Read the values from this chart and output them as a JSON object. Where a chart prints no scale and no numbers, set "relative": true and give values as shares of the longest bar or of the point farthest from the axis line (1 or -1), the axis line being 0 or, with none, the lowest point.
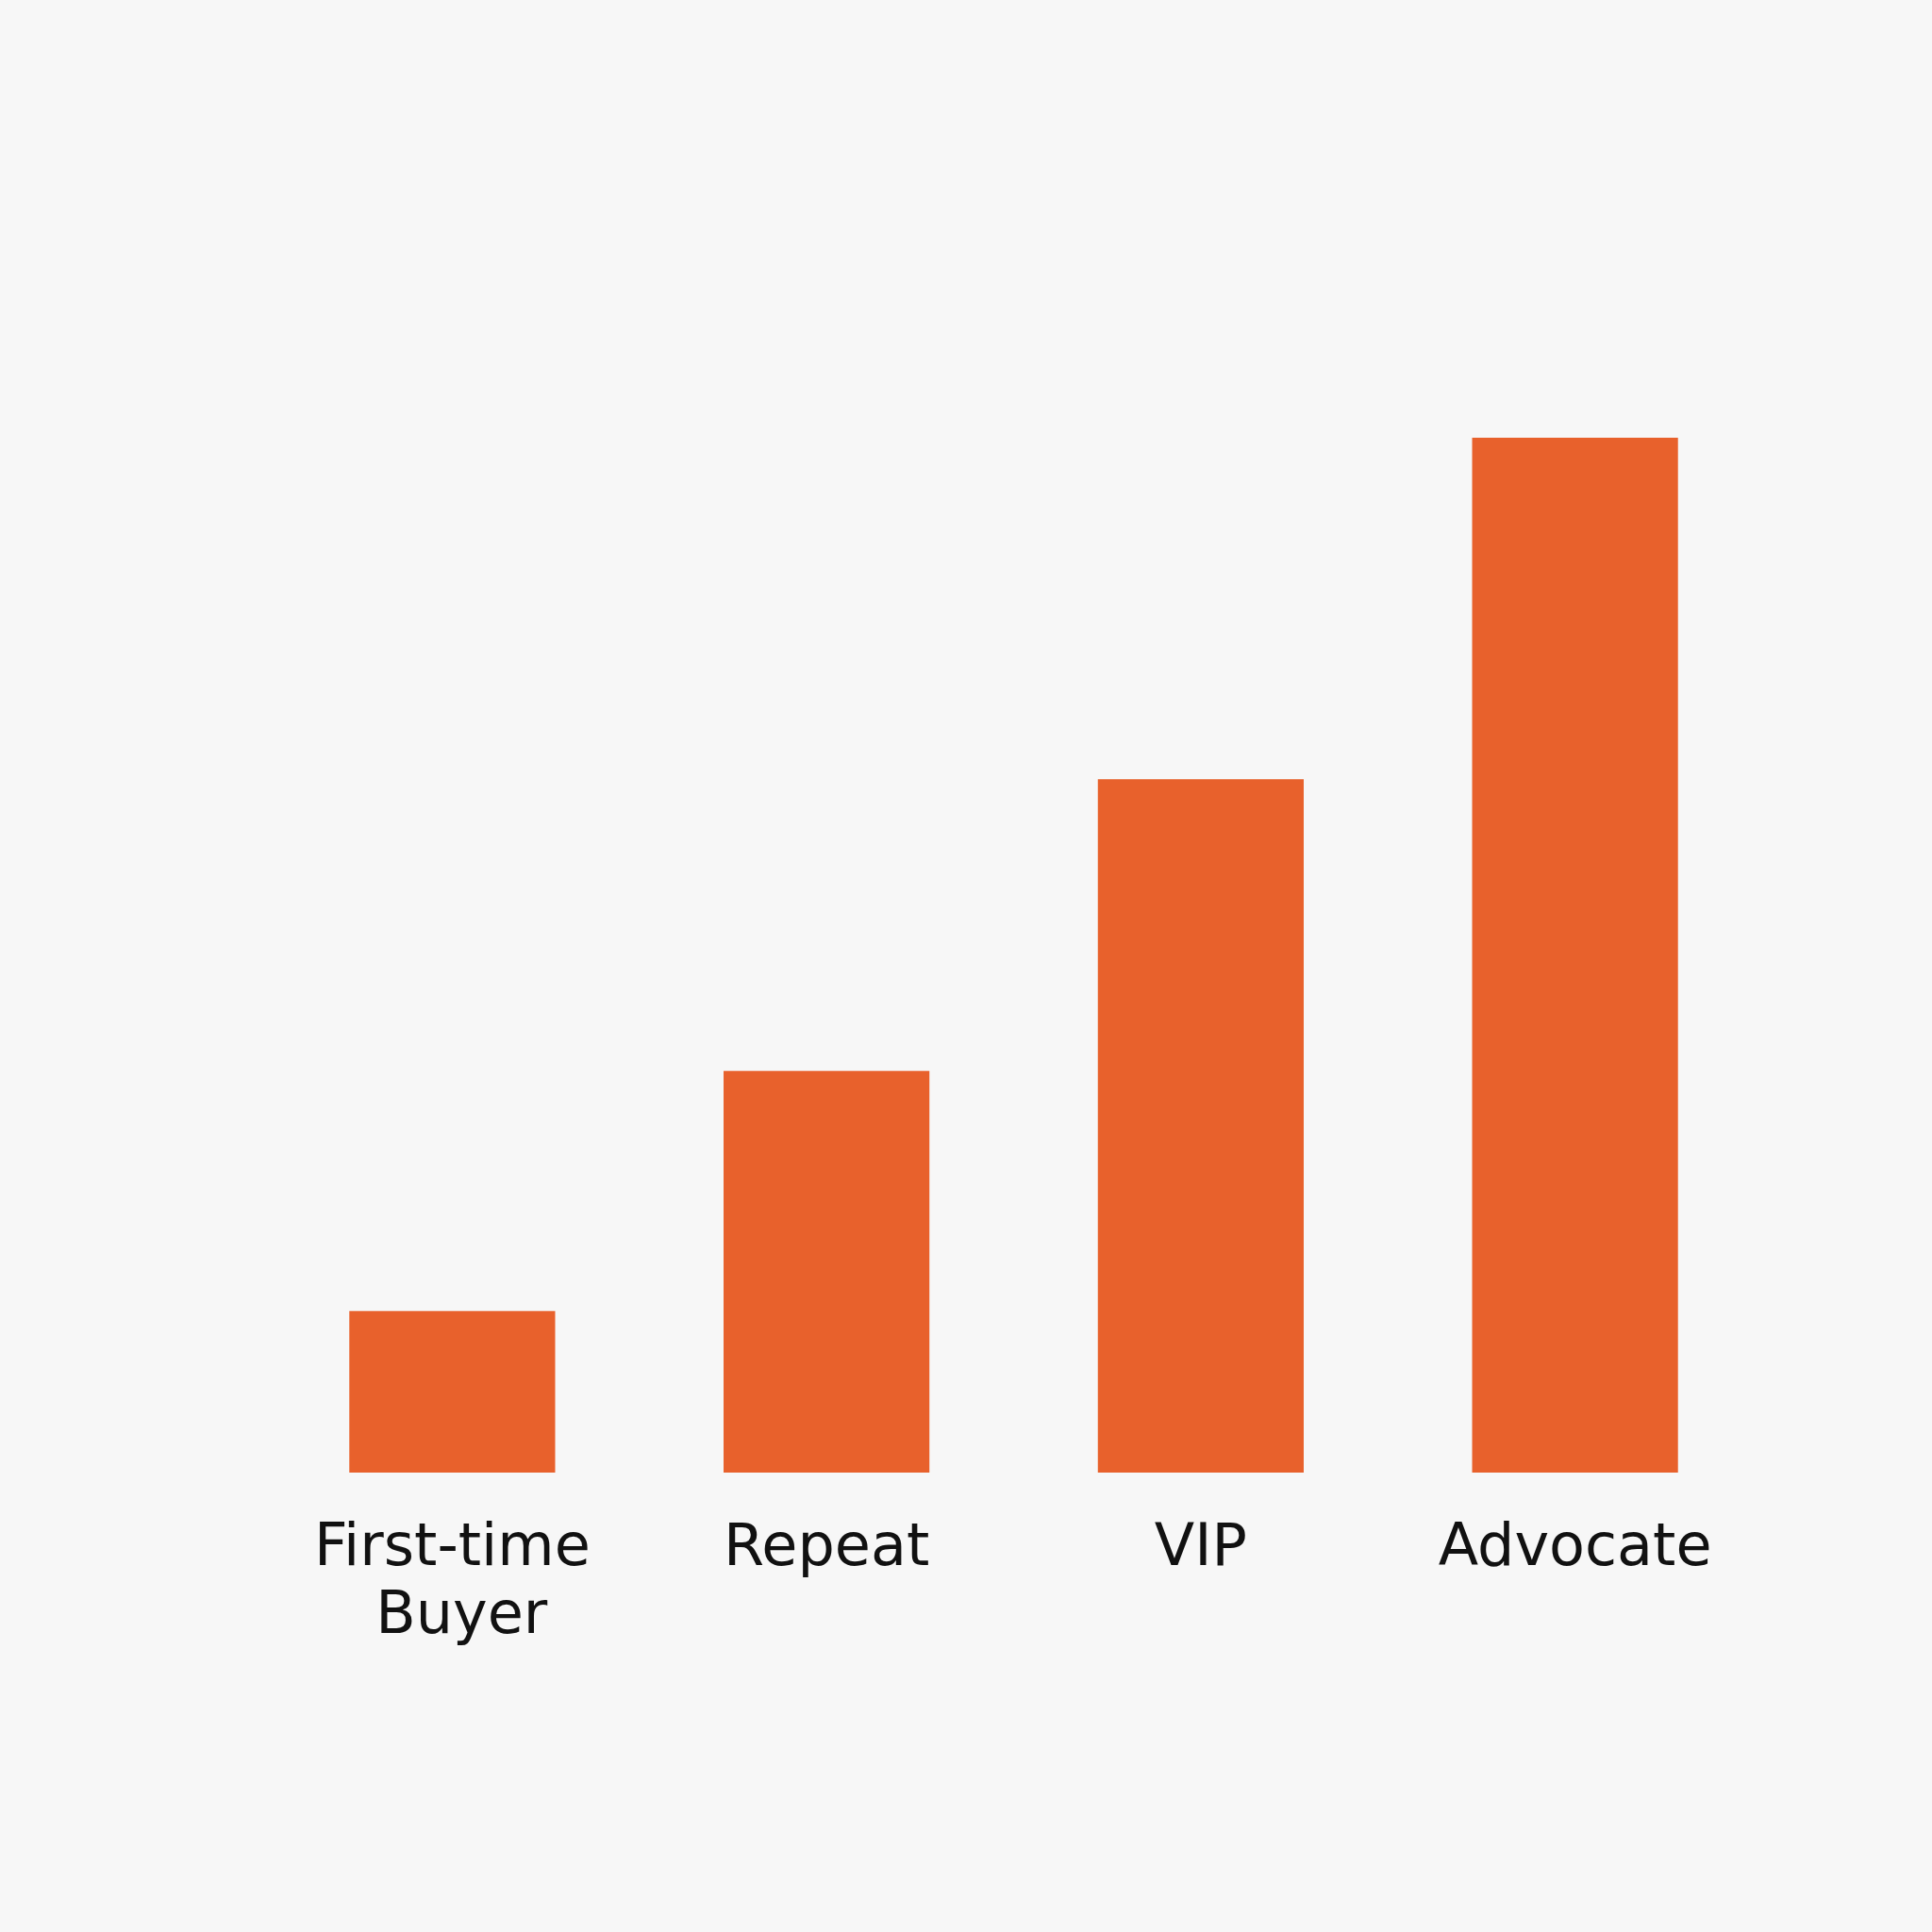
{
  "chart_data": {
    "type": "bar",
    "relative": true,
    "categories": [
      "First-time Buyer",
      "Repeat",
      "VIP",
      "Advocate"
    ],
    "values": [
      0.156,
      0.388,
      0.67,
      1
    ],
    "color": "#e8612c"
  }
}
